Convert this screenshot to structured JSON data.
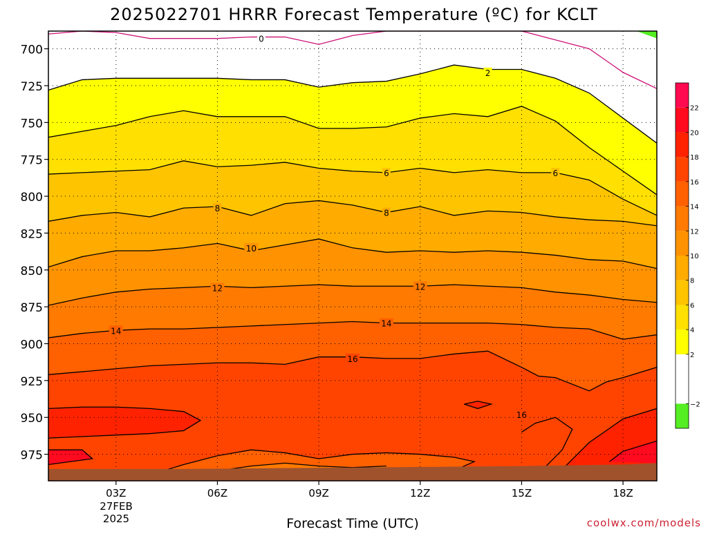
{
  "chart_data": {
    "type": "heatmap",
    "title": "2025022701 HRRR Forecast Temperature (ºC) for KCLT",
    "xlabel": "Forecast Time (UTC)",
    "ylabel": "",
    "x_ticks": [
      "03Z",
      "06Z",
      "09Z",
      "12Z",
      "15Z",
      "18Z"
    ],
    "x_date_line1": "27FEB",
    "x_date_line2": "2025",
    "x_hours_range": [
      1,
      19
    ],
    "y_ticks": [
      700,
      725,
      750,
      775,
      800,
      825,
      850,
      875,
      900,
      925,
      950,
      975
    ],
    "y_range_hpa": [
      688,
      993
    ],
    "y_axis_inverted": true,
    "grid": "dotted",
    "colorbar_placement": "right",
    "colorbar": {
      "levels": [
        -4,
        -2,
        0,
        2,
        4,
        6,
        8,
        10,
        12,
        14,
        16,
        18,
        20,
        22,
        24
      ],
      "labels": [
        "−2",
        "2",
        "4",
        "6",
        "8",
        "10",
        "12",
        "14",
        "16",
        "18",
        "20",
        "22"
      ],
      "colors": [
        "#55ee22",
        "#ffffff",
        "#ffffff",
        "#ffff00",
        "#ffe000",
        "#ffc400",
        "#ffab00",
        "#ff9200",
        "#ff7a00",
        "#ff6000",
        "#ff4400",
        "#ff2200",
        "#ff0a1e",
        "#ff0a50"
      ]
    },
    "contours": [
      {
        "level": 0,
        "color": "#cc1177",
        "points": [
          [
            1,
            690
          ],
          [
            2,
            688
          ],
          [
            3,
            689
          ],
          [
            4,
            693
          ],
          [
            5,
            693
          ],
          [
            6,
            693
          ],
          [
            7,
            692
          ],
          [
            8,
            692
          ],
          [
            9,
            697
          ],
          [
            10,
            691
          ],
          [
            11,
            688
          ],
          [
            15,
            688
          ],
          [
            16,
            694
          ],
          [
            17,
            700
          ],
          [
            18,
            716
          ],
          [
            19,
            727
          ]
        ]
      },
      {
        "level": 2,
        "color": "#000000",
        "points": [
          [
            1,
            728
          ],
          [
            2,
            721
          ],
          [
            3,
            720
          ],
          [
            4,
            720
          ],
          [
            5,
            720
          ],
          [
            6,
            720
          ],
          [
            7,
            721
          ],
          [
            8,
            721
          ],
          [
            9,
            726
          ],
          [
            10,
            723
          ],
          [
            11,
            722
          ],
          [
            12,
            717
          ],
          [
            13,
            711
          ],
          [
            14,
            714
          ],
          [
            15,
            714
          ],
          [
            16,
            720
          ],
          [
            17,
            730
          ],
          [
            18,
            747
          ],
          [
            19,
            764
          ]
        ]
      },
      {
        "level": 4,
        "color": "#000000",
        "points": [
          [
            1,
            760
          ],
          [
            2,
            756
          ],
          [
            3,
            752
          ],
          [
            4,
            746
          ],
          [
            5,
            742
          ],
          [
            6,
            746
          ],
          [
            7,
            746
          ],
          [
            8,
            746
          ],
          [
            9,
            754
          ],
          [
            10,
            754
          ],
          [
            11,
            753
          ],
          [
            12,
            747
          ],
          [
            13,
            744
          ],
          [
            14,
            746
          ],
          [
            15,
            739
          ],
          [
            16,
            749
          ],
          [
            17,
            767
          ],
          [
            18,
            783
          ],
          [
            19,
            799
          ]
        ]
      },
      {
        "level": 6,
        "color": "#000000",
        "points": [
          [
            1,
            785
          ],
          [
            2,
            784
          ],
          [
            3,
            783
          ],
          [
            4,
            782
          ],
          [
            5,
            776
          ],
          [
            6,
            780
          ],
          [
            7,
            779
          ],
          [
            8,
            777
          ],
          [
            9,
            781
          ],
          [
            10,
            783
          ],
          [
            11,
            784
          ],
          [
            12,
            781
          ],
          [
            13,
            784
          ],
          [
            14,
            782
          ],
          [
            15,
            784
          ],
          [
            16,
            784
          ],
          [
            17,
            789
          ],
          [
            18,
            802
          ],
          [
            19,
            813
          ]
        ]
      },
      {
        "level": 8,
        "color": "#000000",
        "points": [
          [
            1,
            817
          ],
          [
            2,
            813
          ],
          [
            3,
            811
          ],
          [
            4,
            814
          ],
          [
            5,
            808
          ],
          [
            6,
            807
          ],
          [
            7,
            813
          ],
          [
            8,
            805
          ],
          [
            9,
            803
          ],
          [
            10,
            806
          ],
          [
            11,
            811
          ],
          [
            12,
            807
          ],
          [
            13,
            813
          ],
          [
            14,
            810
          ],
          [
            15,
            811
          ],
          [
            16,
            814
          ],
          [
            17,
            816
          ],
          [
            18,
            817
          ],
          [
            19,
            820
          ]
        ]
      },
      {
        "level": 10,
        "color": "#000000",
        "points": [
          [
            1,
            848
          ],
          [
            2,
            841
          ],
          [
            3,
            837
          ],
          [
            4,
            837
          ],
          [
            5,
            835
          ],
          [
            6,
            832
          ],
          [
            7,
            837
          ],
          [
            8,
            833
          ],
          [
            9,
            829
          ],
          [
            10,
            835
          ],
          [
            11,
            838
          ],
          [
            12,
            837
          ],
          [
            13,
            838
          ],
          [
            14,
            837
          ],
          [
            15,
            838
          ],
          [
            16,
            840
          ],
          [
            17,
            843
          ],
          [
            18,
            844
          ],
          [
            19,
            849
          ]
        ]
      },
      {
        "level": 12,
        "color": "#000000",
        "points": [
          [
            1,
            874
          ],
          [
            2,
            869
          ],
          [
            3,
            865
          ],
          [
            4,
            863
          ],
          [
            5,
            862
          ],
          [
            6,
            861
          ],
          [
            7,
            862
          ],
          [
            8,
            861
          ],
          [
            9,
            860
          ],
          [
            10,
            861
          ],
          [
            11,
            861
          ],
          [
            12,
            861
          ],
          [
            13,
            860
          ],
          [
            14,
            861
          ],
          [
            15,
            862
          ],
          [
            16,
            865
          ],
          [
            17,
            867
          ],
          [
            18,
            870
          ],
          [
            19,
            872
          ]
        ]
      },
      {
        "level": 14,
        "color": "#000000",
        "points": [
          [
            1,
            896
          ],
          [
            2,
            893
          ],
          [
            3,
            891
          ],
          [
            4,
            890
          ],
          [
            5,
            890
          ],
          [
            6,
            889
          ],
          [
            7,
            888
          ],
          [
            8,
            887
          ],
          [
            9,
            886
          ],
          [
            10,
            885
          ],
          [
            11,
            886
          ],
          [
            12,
            886
          ],
          [
            13,
            886
          ],
          [
            14,
            886
          ],
          [
            15,
            887
          ],
          [
            16,
            889
          ],
          [
            17,
            890
          ],
          [
            18,
            897
          ],
          [
            19,
            894
          ]
        ]
      },
      {
        "level": 16,
        "color": "#000000",
        "points": [
          [
            1,
            921
          ],
          [
            2,
            919
          ],
          [
            3,
            917
          ],
          [
            4,
            915
          ],
          [
            5,
            914
          ],
          [
            6,
            913
          ],
          [
            7,
            913
          ],
          [
            8,
            914
          ],
          [
            9,
            909
          ],
          [
            10,
            909
          ],
          [
            11,
            910
          ],
          [
            12,
            910
          ],
          [
            13,
            907
          ],
          [
            14,
            905
          ],
          [
            15,
            916
          ],
          [
            15.5,
            922
          ],
          [
            16,
            923
          ],
          [
            17,
            932
          ],
          [
            17.5,
            926
          ],
          [
            18,
            923
          ],
          [
            19,
            916
          ]
        ]
      },
      {
        "level": 18,
        "color": "#000000",
        "points": [
          [
            1,
            944
          ],
          [
            2,
            943
          ],
          [
            3,
            943
          ],
          [
            4,
            944
          ],
          [
            5,
            946
          ],
          [
            5.5,
            952
          ],
          [
            5,
            959
          ],
          [
            4,
            961
          ],
          [
            3,
            962
          ],
          [
            2,
            963
          ],
          [
            1,
            964
          ]
        ]
      },
      {
        "level": 18,
        "color": "#000000",
        "points": [
          [
            13.3,
            941
          ],
          [
            13.7,
            939
          ],
          [
            14.1,
            941
          ],
          [
            13.7,
            944
          ],
          [
            13.3,
            941
          ]
        ]
      },
      {
        "level": 18,
        "color": "#000000",
        "points": [
          [
            16.3,
            983
          ],
          [
            17,
            967
          ],
          [
            18,
            951
          ],
          [
            19,
            944
          ]
        ]
      },
      {
        "level": 20,
        "color": "#000000",
        "points": [
          [
            1,
            972
          ],
          [
            2,
            972
          ],
          [
            2.3,
            978
          ],
          [
            1,
            982
          ]
        ]
      },
      {
        "level": 20,
        "color": "#000000",
        "points": [
          [
            17.6,
            980
          ],
          [
            18,
            973
          ],
          [
            19,
            966
          ]
        ]
      },
      {
        "level": 16,
        "color": "#000000",
        "points": [
          [
            15,
            960
          ],
          [
            15.4,
            954
          ],
          [
            16,
            950
          ],
          [
            16.5,
            958
          ],
          [
            16.2,
            972
          ],
          [
            15.6,
            986
          ]
        ]
      },
      {
        "level": 14,
        "color": "#000000",
        "points": [
          [
            4,
            989
          ],
          [
            5,
            982
          ],
          [
            6,
            976
          ],
          [
            7,
            972
          ],
          [
            8,
            974
          ],
          [
            9,
            978
          ],
          [
            10,
            975
          ],
          [
            11,
            974
          ],
          [
            12,
            975
          ],
          [
            13,
            977
          ],
          [
            13.6,
            980
          ],
          [
            13,
            986
          ]
        ]
      },
      {
        "level": 12,
        "color": "#000000",
        "points": [
          [
            5.5,
            988
          ],
          [
            7,
            983
          ],
          [
            8,
            981
          ],
          [
            9,
            983
          ],
          [
            10,
            984
          ],
          [
            11,
            983
          ]
        ]
      },
      {
        "level": 12,
        "color": "#000000",
        "points": [
          [
            3,
            988
          ],
          [
            4,
            987
          ],
          [
            5,
            987
          ]
        ]
      }
    ],
    "contour_labels": [
      {
        "text": "0",
        "x": 7.3,
        "y": 693
      },
      {
        "text": "2",
        "x": 14.0,
        "y": 716
      },
      {
        "text": "6",
        "x": 11.0,
        "y": 784
      },
      {
        "text": "6",
        "x": 16.0,
        "y": 784
      },
      {
        "text": "8",
        "x": 6.0,
        "y": 808
      },
      {
        "text": "8",
        "x": 11.0,
        "y": 811
      },
      {
        "text": "10",
        "x": 7.0,
        "y": 835
      },
      {
        "text": "12",
        "x": 6.0,
        "y": 862
      },
      {
        "text": "12",
        "x": 12.0,
        "y": 861
      },
      {
        "text": "14",
        "x": 3.0,
        "y": 891
      },
      {
        "text": "14",
        "x": 11.0,
        "y": 886
      },
      {
        "text": "16",
        "x": 10.0,
        "y": 910
      },
      {
        "text": "16",
        "x": 15.0,
        "y": 948
      }
    ],
    "surface": {
      "color": "#a0522d",
      "top": [
        [
          1,
          985
        ],
        [
          5,
          985
        ],
        [
          10,
          984
        ],
        [
          15,
          983
        ],
        [
          18,
          982
        ],
        [
          19,
          981
        ]
      ]
    }
  },
  "footer": {
    "credit": "coolwx.com/models"
  }
}
